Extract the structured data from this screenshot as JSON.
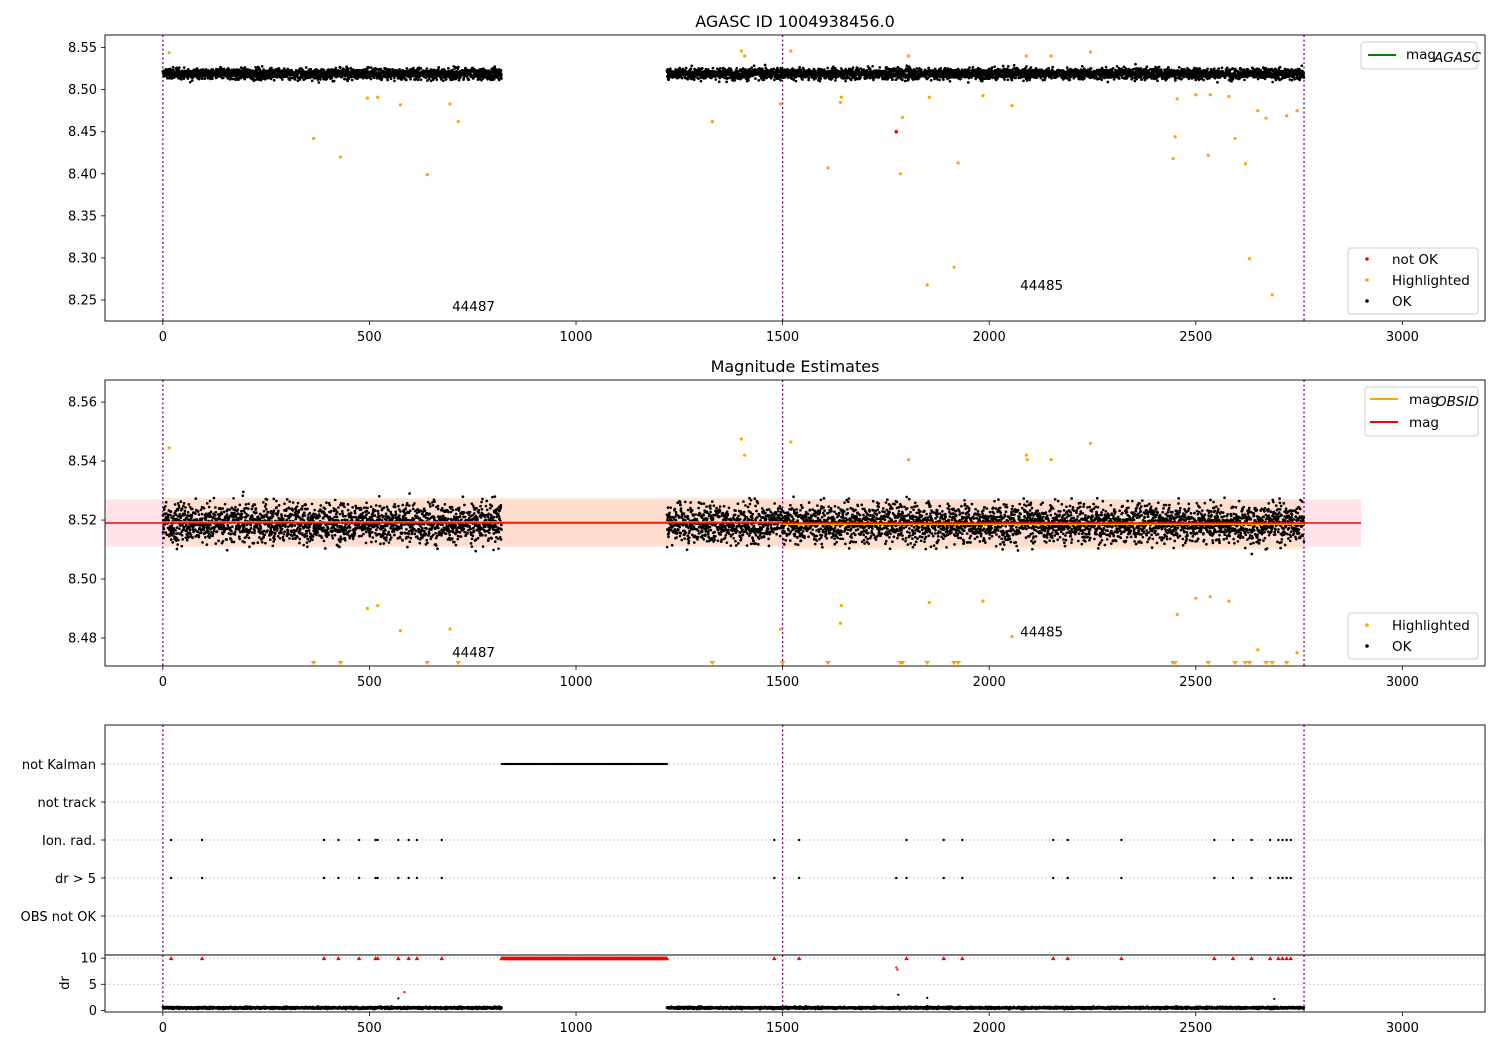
{
  "colors": {
    "ok": "#000000",
    "highlighted": "#ffa500",
    "not_ok": "#ff0000",
    "mag_agasc": "#008000",
    "mag_obsid": "#ffa500",
    "mag": "#ff0000",
    "obsid_boundary": "#800080",
    "band_mag": "#ffc0cb",
    "band_obsid": "#ffdab9",
    "grid": "#b0b0b0"
  },
  "chart_data": [
    {
      "type": "scatter",
      "title": "AGASC ID 1004938456.0",
      "xlim": [
        -140,
        3200
      ],
      "ylim": [
        8.225,
        8.565
      ],
      "x_ticks": [
        0,
        500,
        1000,
        1500,
        2000,
        2500,
        3000
      ],
      "y_ticks": [
        8.25,
        8.3,
        8.35,
        8.4,
        8.45,
        8.5,
        8.55
      ],
      "y_tick_labels": [
        "8.25",
        "8.30",
        "8.35",
        "8.40",
        "8.45",
        "8.50",
        "8.55"
      ],
      "obsid_boundaries": [
        0,
        1500,
        2762
      ],
      "obsid_labels": [
        {
          "text": "44487",
          "x": 700,
          "y": 8.237
        },
        {
          "text": "44485",
          "x": 2075,
          "y": 8.262
        }
      ],
      "ok_band": {
        "segments": [
          [
            0,
            820
          ],
          [
            1220,
            2762
          ]
        ],
        "center": 8.519,
        "spread": 0.0075,
        "count_per_100": 62
      },
      "highlighted_points": [
        [
          15,
          8.544
        ],
        [
          365,
          8.442
        ],
        [
          430,
          8.42
        ],
        [
          495,
          8.49
        ],
        [
          520,
          8.491
        ],
        [
          575,
          8.482
        ],
        [
          640,
          8.399
        ],
        [
          695,
          8.483
        ],
        [
          715,
          8.462
        ],
        [
          1330,
          8.462
        ],
        [
          1400,
          8.546
        ],
        [
          1408,
          8.54
        ],
        [
          1495,
          8.483
        ],
        [
          1520,
          8.546
        ],
        [
          1610,
          8.407
        ],
        [
          1640,
          8.485
        ],
        [
          1642,
          8.491
        ],
        [
          1785,
          8.4
        ],
        [
          1790,
          8.467
        ],
        [
          1805,
          8.54
        ],
        [
          1850,
          8.268
        ],
        [
          1855,
          8.491
        ],
        [
          1915,
          8.289
        ],
        [
          1925,
          8.413
        ],
        [
          1985,
          8.493
        ],
        [
          2055,
          8.481
        ],
        [
          2090,
          8.54
        ],
        [
          2150,
          8.54
        ],
        [
          2245,
          8.545
        ],
        [
          2445,
          8.418
        ],
        [
          2450,
          8.444
        ],
        [
          2455,
          8.489
        ],
        [
          2500,
          8.494
        ],
        [
          2530,
          8.422
        ],
        [
          2535,
          8.494
        ],
        [
          2580,
          8.492
        ],
        [
          2595,
          8.442
        ],
        [
          2620,
          8.412
        ],
        [
          2630,
          8.299
        ],
        [
          2650,
          8.475
        ],
        [
          2670,
          8.466
        ],
        [
          2685,
          8.256
        ],
        [
          2720,
          8.469
        ],
        [
          2745,
          8.475
        ]
      ],
      "not_ok_points": [
        [
          1775,
          8.45
        ]
      ],
      "legend_top": [
        {
          "label": "mag",
          "subscript": "AGASC",
          "color": "#008000"
        }
      ],
      "legend_bottom": [
        {
          "label": "not OK",
          "color": "#ff0000"
        },
        {
          "label": "Highlighted",
          "color": "#ffa500"
        },
        {
          "label": "OK",
          "color": "#000000"
        }
      ]
    },
    {
      "type": "scatter",
      "title": "Magnitude Estimates",
      "xlim": [
        -140,
        3200
      ],
      "ylim": [
        8.4705,
        8.5675
      ],
      "x_ticks": [
        0,
        500,
        1000,
        1500,
        2000,
        2500,
        3000
      ],
      "y_ticks": [
        8.48,
        8.5,
        8.52,
        8.54,
        8.56
      ],
      "y_tick_labels": [
        "8.48",
        "8.50",
        "8.52",
        "8.54",
        "8.56"
      ],
      "obsid_boundaries": [
        0,
        1500,
        2762
      ],
      "obsid_labels": [
        {
          "text": "44487",
          "x": 700,
          "y": 8.4735
        },
        {
          "text": "44485",
          "x": 2075,
          "y": 8.4805
        }
      ],
      "mag_line": {
        "value": 8.519,
        "band": [
          8.511,
          8.527
        ],
        "x_range": [
          -140,
          2900
        ]
      },
      "mag_obsid_lines": [
        {
          "x_range": [
            0,
            1500
          ],
          "value": 8.5192,
          "band": [
            8.511,
            8.5275
          ]
        },
        {
          "x_range": [
            1500,
            2762
          ],
          "value": 8.5187,
          "band": [
            8.51,
            8.527
          ]
        }
      ],
      "ok_band": {
        "segments": [
          [
            0,
            820
          ],
          [
            1220,
            2762
          ]
        ],
        "center": 8.519,
        "spread": 0.0075,
        "count_per_100": 62
      },
      "highlighted_points": [
        [
          15,
          8.5445
        ],
        [
          495,
          8.49
        ],
        [
          520,
          8.491
        ],
        [
          575,
          8.4825
        ],
        [
          695,
          8.483
        ],
        [
          1400,
          8.5475
        ],
        [
          1408,
          8.542
        ],
        [
          1495,
          8.483
        ],
        [
          1520,
          8.5465
        ],
        [
          1640,
          8.485
        ],
        [
          1642,
          8.491
        ],
        [
          1805,
          8.5405
        ],
        [
          1855,
          8.492
        ],
        [
          1985,
          8.4925
        ],
        [
          2055,
          8.4805
        ],
        [
          2090,
          8.542
        ],
        [
          2092,
          8.5405
        ],
        [
          2150,
          8.5405
        ],
        [
          2245,
          8.546
        ],
        [
          2455,
          8.488
        ],
        [
          2500,
          8.4935
        ],
        [
          2535,
          8.494
        ],
        [
          2580,
          8.4925
        ],
        [
          2650,
          8.476
        ],
        [
          2745,
          8.475
        ]
      ],
      "off_scale_markers": [
        365,
        430,
        640,
        715,
        1330,
        1500,
        1610,
        1785,
        1790,
        1850,
        1915,
        1925,
        2445,
        2450,
        2530,
        2595,
        2620,
        2630,
        2670,
        2685,
        2720
      ],
      "legend_top": [
        {
          "label": "mag",
          "subscript": "OBSID",
          "color": "#ffa500"
        },
        {
          "label": "mag",
          "subscript": "",
          "color": "#ff0000"
        }
      ],
      "legend_bottom": [
        {
          "label": "Highlighted",
          "color": "#ffa500"
        },
        {
          "label": "OK",
          "color": "#000000"
        }
      ]
    },
    {
      "type": "scatter",
      "title": "",
      "xlim": [
        -140,
        3200
      ],
      "categories": [
        "OBS not OK",
        "dr > 5",
        "Ion. rad.",
        "not track",
        "not Kalman"
      ],
      "flags": {
        "not Kalman": {
          "range": [
            820,
            1220
          ]
        },
        "not track": {
          "x": []
        },
        "Ion. rad.": {
          "x": [
            20,
            95,
            390,
            425,
            475,
            515,
            520,
            570,
            595,
            615,
            675,
            1480,
            1540,
            1800,
            1890,
            1935,
            2155,
            2190,
            2320,
            2545,
            2590,
            2635,
            2680,
            2700,
            2710,
            2720,
            2730
          ]
        },
        "dr > 5": {
          "x": [
            20,
            95,
            390,
            425,
            475,
            515,
            520,
            570,
            595,
            615,
            675,
            1480,
            1540,
            1775,
            1800,
            1890,
            1935,
            2155,
            2190,
            2320,
            2545,
            2590,
            2635,
            2680,
            2700,
            2710,
            2720,
            2730
          ]
        },
        "OBS not OK": {
          "x": []
        }
      },
      "obsid_boundaries": [
        0,
        1500,
        2762
      ]
    },
    {
      "type": "scatter",
      "title": "",
      "xlim": [
        -140,
        3200
      ],
      "ylim": [
        -0.3,
        10.6
      ],
      "x_ticks": [
        0,
        500,
        1000,
        1500,
        2000,
        2500,
        3000
      ],
      "y_ticks": [
        0,
        5,
        10
      ],
      "y_tick_labels": [
        "0",
        "5",
        "10"
      ],
      "ylabel": "dr",
      "obsid_boundaries": [
        0,
        1500,
        2762
      ],
      "clipped_value": 10,
      "clipped_x": [
        20,
        95,
        390,
        425,
        475,
        515,
        520,
        570,
        595,
        615,
        675,
        1480,
        1540,
        1800,
        1890,
        1935,
        2155,
        2190,
        2320,
        2545,
        2590,
        2635,
        2680,
        2700,
        2710,
        2720,
        2730
      ],
      "clipped_range": [
        820,
        1220
      ],
      "red_points": [
        [
          585,
          3.5
        ],
        [
          1775,
          8.2
        ],
        [
          1778,
          7.8
        ]
      ],
      "black_outliers": [
        [
          570,
          2.3
        ],
        [
          1780,
          3.0
        ],
        [
          1850,
          2.4
        ],
        [
          2690,
          2.2
        ]
      ],
      "ok_band": {
        "segments": [
          [
            0,
            820
          ],
          [
            1220,
            2762
          ]
        ],
        "center": 0.5,
        "spread": 0.22,
        "count_per_100": 62
      }
    }
  ]
}
